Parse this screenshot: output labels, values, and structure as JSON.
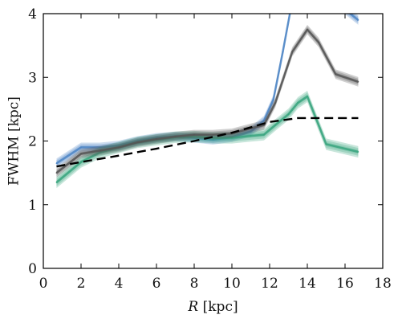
{
  "chart_data": {
    "type": "line",
    "title": "",
    "xlabel_var": "R",
    "xlabel_unit": " [kpc]",
    "ylabel": "FWHM [kpc]",
    "xlim": [
      0,
      18
    ],
    "ylim": [
      0,
      4
    ],
    "xticks": [
      0,
      2,
      4,
      6,
      8,
      10,
      12,
      14,
      16,
      18
    ],
    "yticks": [
      0,
      1,
      2,
      3,
      4
    ],
    "grid": false,
    "legend": "none",
    "series": [
      {
        "color": "#4f86c6",
        "band_halfwidth": 0.05,
        "style": "band",
        "x": [
          0.7,
          2,
          3,
          4,
          5,
          6,
          7,
          8,
          9,
          10,
          11,
          11.7,
          12.2,
          12.7,
          13.2,
          14,
          15,
          16.7
        ],
        "y": [
          1.65,
          1.9,
          1.9,
          1.93,
          2.0,
          2.05,
          2.07,
          2.05,
          2.02,
          2.06,
          2.15,
          2.32,
          2.65,
          3.4,
          4.2,
          4.4,
          4.3,
          3.9
        ]
      },
      {
        "color": "#3aa57f",
        "band_halfwidth": 0.06,
        "style": "band",
        "x": [
          0.7,
          2,
          3,
          4,
          5,
          6,
          7,
          8,
          9,
          10,
          11,
          11.7,
          12.3,
          13,
          13.5,
          14,
          15,
          16.7
        ],
        "y": [
          1.35,
          1.67,
          1.82,
          1.9,
          1.98,
          2.02,
          2.06,
          2.07,
          2.05,
          2.05,
          2.08,
          2.1,
          2.25,
          2.42,
          2.6,
          2.7,
          1.95,
          1.83
        ]
      },
      {
        "color": "#555555",
        "band_halfwidth": 0.05,
        "style": "band",
        "x": [
          0.7,
          2,
          3,
          4,
          5,
          6,
          7,
          8,
          9,
          10,
          11,
          11.7,
          12.3,
          13.2,
          14,
          14.6,
          15.5,
          16.7
        ],
        "y": [
          1.5,
          1.8,
          1.85,
          1.9,
          1.98,
          2.03,
          2.07,
          2.1,
          2.1,
          2.12,
          2.2,
          2.25,
          2.6,
          3.4,
          3.75,
          3.55,
          3.05,
          2.93
        ]
      },
      {
        "color": "#000000",
        "style": "dashed",
        "x": [
          0.7,
          2,
          4,
          6,
          8,
          10,
          12,
          13.5,
          16.7
        ],
        "y": [
          1.6,
          1.67,
          1.77,
          1.88,
          2.0,
          2.13,
          2.3,
          2.36,
          2.36
        ]
      }
    ]
  }
}
